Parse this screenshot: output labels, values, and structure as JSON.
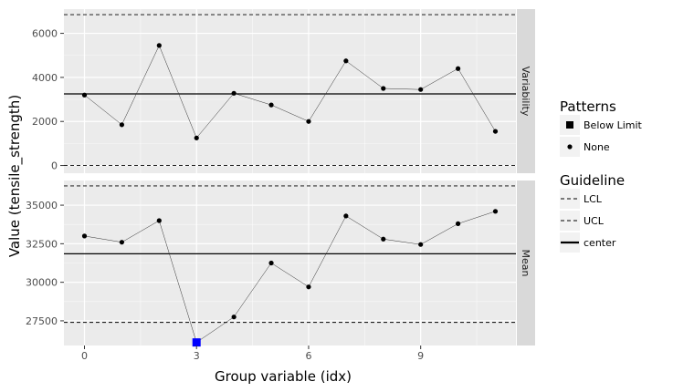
{
  "chart_data": {
    "type": "line",
    "xlabel": "Group variable (idx)",
    "ylabel": "Value (tensile_strength)",
    "x_ticks": [
      0,
      3,
      6,
      9
    ],
    "xlim": [
      -0.55,
      11.55
    ],
    "x": [
      0,
      1,
      2,
      3,
      4,
      5,
      6,
      7,
      8,
      9,
      10,
      11
    ],
    "panels": [
      {
        "strip_label": "Variability",
        "ylim": [
          -350,
          7100
        ],
        "y_ticks": [
          0,
          2000,
          4000,
          6000
        ],
        "y_tick_labels": [
          "0",
          "2000",
          "4000",
          "6000"
        ],
        "values": [
          3200,
          1850,
          5450,
          1250,
          3280,
          2750,
          2000,
          4750,
          3500,
          3450,
          4400,
          1550
        ],
        "patterns": [
          "None",
          "None",
          "None",
          "None",
          "None",
          "None",
          "None",
          "None",
          "None",
          "None",
          "None",
          "None"
        ],
        "guidelines": {
          "LCL": 0,
          "UCL": 6850,
          "center": 3250
        }
      },
      {
        "strip_label": "Mean",
        "ylim": [
          25900,
          36600
        ],
        "y_ticks": [
          27500,
          30000,
          32500,
          35000
        ],
        "y_tick_labels": [
          "27500",
          "30000",
          "32500",
          "35000"
        ],
        "values": [
          33000,
          32600,
          34000,
          26100,
          27750,
          31250,
          29700,
          34300,
          32800,
          32450,
          33800,
          34600
        ],
        "patterns": [
          "None",
          "None",
          "None",
          "Below Limit",
          "None",
          "None",
          "None",
          "None",
          "None",
          "None",
          "None",
          "None"
        ],
        "guidelines": {
          "LCL": 27400,
          "UCL": 36250,
          "center": 31850
        }
      }
    ],
    "legend": {
      "placement": "right",
      "patterns": {
        "title": "Patterns",
        "items": [
          {
            "label": "Below Limit",
            "shape": "square",
            "color": "#0000ff"
          },
          {
            "label": "None",
            "shape": "circle",
            "color": "#000000"
          }
        ]
      },
      "guideline": {
        "title": "Guideline",
        "items": [
          {
            "label": "LCL",
            "style": "dashed"
          },
          {
            "label": "UCL",
            "style": "dashed"
          },
          {
            "label": "center",
            "style": "solid"
          }
        ]
      }
    },
    "colors": {
      "panel_bg": "#ebebeb",
      "strip_bg": "#d9d9d9",
      "grid": "#ffffff",
      "point": "#000000",
      "below_limit": "#0000ff"
    },
    "grid": true
  }
}
